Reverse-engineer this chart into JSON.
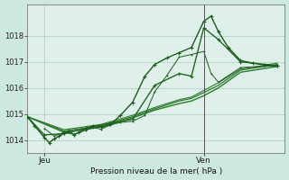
{
  "bg_color": "#cce8e0",
  "plot_bg": "#dff0eb",
  "grid_color": "#aaccc4",
  "x_labels": [
    "Jeu",
    "Ven"
  ],
  "x_tick_pos": [
    0.07,
    0.72
  ],
  "xlabel": "Pression niveau de la mer( hPa )",
  "ylim": [
    1013.5,
    1019.2
  ],
  "yticks": [
    1014,
    1015,
    1016,
    1017,
    1018
  ],
  "xlim": [
    0.0,
    1.05
  ],
  "vline_x": 0.72,
  "s1": {
    "x": [
      0.0,
      0.03,
      0.07,
      0.09,
      0.11,
      0.13,
      0.15,
      0.17,
      0.19,
      0.21,
      0.24,
      0.27,
      0.3,
      0.34,
      0.38,
      0.43,
      0.48,
      0.52,
      0.57,
      0.62,
      0.67,
      0.72,
      0.75,
      0.78,
      0.82,
      0.87,
      0.92,
      0.97,
      1.02
    ],
    "y": [
      1014.9,
      1014.55,
      1014.1,
      1013.9,
      1014.05,
      1014.15,
      1014.25,
      1014.35,
      1014.2,
      1014.3,
      1014.45,
      1014.55,
      1014.5,
      1014.6,
      1014.95,
      1015.45,
      1016.45,
      1016.9,
      1017.15,
      1017.35,
      1017.55,
      1018.55,
      1018.75,
      1018.15,
      1017.55,
      1017.05,
      1016.95,
      1016.88,
      1016.85
    ],
    "color": "#1a5c1a",
    "lw": 1.0,
    "ms": 2.5
  },
  "s2": {
    "x": [
      0.0,
      0.07,
      0.15,
      0.24,
      0.34,
      0.43,
      0.52,
      0.62,
      0.67,
      0.72,
      0.78,
      0.87,
      1.02
    ],
    "y": [
      1014.9,
      1014.2,
      1014.25,
      1014.45,
      1014.65,
      1014.8,
      1016.1,
      1016.55,
      1016.45,
      1018.3,
      1017.85,
      1017.0,
      1016.85
    ],
    "color": "#226622",
    "lw": 1.0,
    "ms": 2.5
  },
  "s3": {
    "x": [
      0.0,
      0.15,
      0.3,
      0.43,
      0.52,
      0.62,
      0.67,
      0.72,
      0.78,
      0.87,
      1.02
    ],
    "y": [
      1014.9,
      1014.3,
      1014.5,
      1014.85,
      1015.15,
      1015.4,
      1015.5,
      1015.7,
      1016.0,
      1016.6,
      1016.82
    ],
    "color": "#2d7a2d",
    "lw": 1.0,
    "ms": 0
  },
  "s4": {
    "x": [
      0.0,
      0.15,
      0.3,
      0.43,
      0.52,
      0.62,
      0.67,
      0.72,
      0.78,
      0.87,
      1.02
    ],
    "y": [
      1014.9,
      1014.35,
      1014.55,
      1014.9,
      1015.2,
      1015.5,
      1015.6,
      1015.82,
      1016.1,
      1016.68,
      1016.9
    ],
    "color": "#2d7a2d",
    "lw": 0.9,
    "ms": 0
  },
  "s5": {
    "x": [
      0.0,
      0.15,
      0.3,
      0.43,
      0.52,
      0.62,
      0.67,
      0.72,
      0.78,
      0.87,
      1.02
    ],
    "y": [
      1014.9,
      1014.4,
      1014.6,
      1014.95,
      1015.25,
      1015.55,
      1015.65,
      1015.9,
      1016.2,
      1016.72,
      1016.95
    ],
    "color": "#2d7a2d",
    "lw": 0.8,
    "ms": 0
  },
  "s6": {
    "x": [
      0.07,
      0.11,
      0.15,
      0.19,
      0.24,
      0.27,
      0.3,
      0.34,
      0.38,
      0.43,
      0.48,
      0.52,
      0.57,
      0.62,
      0.67,
      0.72,
      0.75,
      0.78,
      0.87,
      1.02
    ],
    "y": [
      1014.45,
      1014.15,
      1014.3,
      1014.22,
      1014.38,
      1014.48,
      1014.42,
      1014.58,
      1014.68,
      1014.72,
      1014.95,
      1015.85,
      1016.48,
      1017.18,
      1017.28,
      1017.4,
      1016.55,
      1016.22,
      1016.78,
      1016.85
    ],
    "color": "#1a5c1a",
    "lw": 0.7,
    "ms": 2.0
  }
}
